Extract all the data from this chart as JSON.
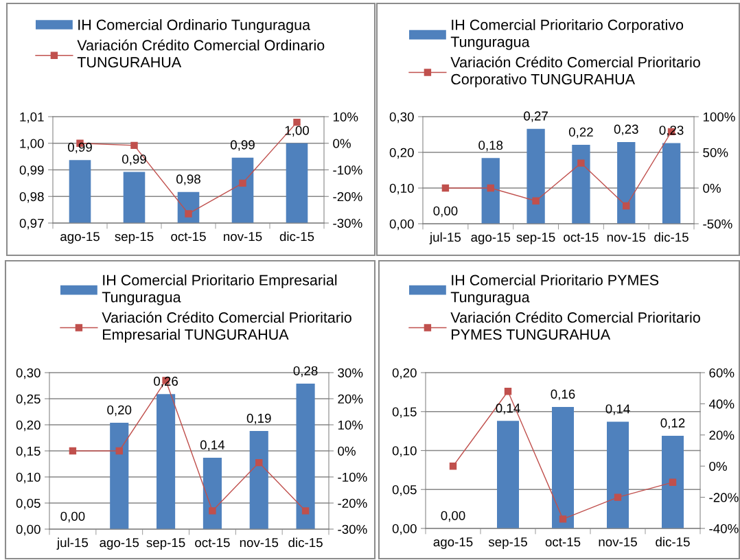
{
  "chart_data": [
    {
      "type": "bar",
      "categories": [
        "ago-15",
        "sep-15",
        "oct-15",
        "nov-15",
        "dic-15"
      ],
      "series": [
        {
          "name": "IH Comercial Ordinario Tunguragua",
          "color": "#4f81bd",
          "values": [
            0.9937,
            0.9892,
            0.9817,
            0.9946,
            1.0
          ],
          "value_labels": [
            "0,99",
            "0,99",
            "0,98",
            "0,99",
            "1,00"
          ]
        },
        {
          "name": "Variación Crédito Comercial Ordinario TUNGURAHUA",
          "type": "line",
          "axis": "y2",
          "color": "#c0504d",
          "marker": "square",
          "values": [
            0,
            -0.8,
            -26.5,
            -15,
            7.9
          ]
        }
      ],
      "ylim": [
        0.97,
        1.01
      ],
      "yticks": [
        {
          "value": 0.97,
          "label": "0,97"
        },
        {
          "value": 0.98,
          "label": "0,98"
        },
        {
          "value": 0.99,
          "label": "0,99"
        },
        {
          "value": 1.0,
          "label": "1,00"
        },
        {
          "value": 1.01,
          "label": "1,01"
        }
      ],
      "y2lim": [
        -30,
        10
      ],
      "y2ticks": [
        {
          "value": -30,
          "label": "-30%"
        },
        {
          "value": -20,
          "label": "-20%"
        },
        {
          "value": -10,
          "label": "-10%"
        },
        {
          "value": 0,
          "label": "0%"
        },
        {
          "value": 10,
          "label": "10%"
        }
      ],
      "grid": "y",
      "legend": "top"
    },
    {
      "type": "bar",
      "categories": [
        "jul-15",
        "ago-15",
        "sep-15",
        "oct-15",
        "nov-15",
        "dic-15"
      ],
      "series": [
        {
          "name": "IH Comercial Prioritario Corporativo Tunguragua",
          "color": "#4f81bd",
          "values": [
            0,
            0.184,
            0.266,
            0.221,
            0.229,
            0.226
          ],
          "value_labels": [
            "0,00",
            "0,18",
            "0,27",
            "0,22",
            "0,23",
            "0,23"
          ]
        },
        {
          "name": "Variación Crédito Comercial Prioritario Corporativo TUNGURAHUA",
          "type": "line",
          "axis": "y2",
          "color": "#c0504d",
          "marker": "square",
          "values": [
            0,
            0,
            -18,
            35,
            -25,
            79
          ]
        }
      ],
      "ylim": [
        0,
        0.3
      ],
      "yticks": [
        {
          "value": 0,
          "label": "0,00"
        },
        {
          "value": 0.1,
          "label": "0,10"
        },
        {
          "value": 0.2,
          "label": "0,20"
        },
        {
          "value": 0.3,
          "label": "0,30"
        }
      ],
      "y2lim": [
        -50,
        100
      ],
      "y2ticks": [
        {
          "value": -50,
          "label": "-50%"
        },
        {
          "value": 0,
          "label": "0%"
        },
        {
          "value": 50,
          "label": "50%"
        },
        {
          "value": 100,
          "label": "100%"
        }
      ],
      "grid": "y",
      "legend": "top"
    },
    {
      "type": "bar",
      "categories": [
        "jul-15",
        "ago-15",
        "sep-15",
        "oct-15",
        "nov-15",
        "dic-15"
      ],
      "series": [
        {
          "name": "IH Comercial Prioritario Empresarial Tunguragua",
          "color": "#4f81bd",
          "values": [
            0,
            0.204,
            0.259,
            0.137,
            0.188,
            0.279
          ],
          "value_labels": [
            "0,00",
            "0,20",
            "0,26",
            "0,14",
            "0,19",
            "0,28"
          ]
        },
        {
          "name": "Variación Crédito Comercial Prioritario Empresarial TUNGURAHUA",
          "type": "line",
          "axis": "y2",
          "color": "#c0504d",
          "marker": "square",
          "values": [
            0,
            0,
            27,
            -23,
            -4.5,
            -23
          ]
        }
      ],
      "ylim": [
        0,
        0.3
      ],
      "yticks": [
        {
          "value": 0,
          "label": "0,00"
        },
        {
          "value": 0.05,
          "label": "0,05"
        },
        {
          "value": 0.1,
          "label": "0,10"
        },
        {
          "value": 0.15,
          "label": "0,15"
        },
        {
          "value": 0.2,
          "label": "0,20"
        },
        {
          "value": 0.25,
          "label": "0,25"
        },
        {
          "value": 0.3,
          "label": "0,30"
        }
      ],
      "y2lim": [
        -30,
        30
      ],
      "y2ticks": [
        {
          "value": -30,
          "label": "-30%"
        },
        {
          "value": -20,
          "label": "-20%"
        },
        {
          "value": -10,
          "label": "-10%"
        },
        {
          "value": 0,
          "label": "0%"
        },
        {
          "value": 10,
          "label": "10%"
        },
        {
          "value": 20,
          "label": "20%"
        },
        {
          "value": 30,
          "label": "30%"
        }
      ],
      "grid": "y",
      "legend": "top"
    },
    {
      "type": "bar",
      "categories": [
        "ago-15",
        "sep-15",
        "oct-15",
        "nov-15",
        "dic-15"
      ],
      "series": [
        {
          "name": "IH Comercial Prioritario PYMES Tunguragua",
          "color": "#4f81bd",
          "values": [
            0,
            0.138,
            0.156,
            0.137,
            0.119
          ],
          "value_labels": [
            "0,00",
            "0,14",
            "0,16",
            "0,14",
            "0,12"
          ]
        },
        {
          "name": "Variación Crédito Comercial Prioritario PYMES TUNGURAHUA",
          "type": "line",
          "axis": "y2",
          "color": "#c0504d",
          "marker": "square",
          "values": [
            0,
            48,
            -34,
            -20,
            -10.4
          ]
        }
      ],
      "ylim": [
        0,
        0.2
      ],
      "yticks": [
        {
          "value": 0,
          "label": "0,00"
        },
        {
          "value": 0.05,
          "label": "0,05"
        },
        {
          "value": 0.1,
          "label": "0,10"
        },
        {
          "value": 0.15,
          "label": "0,15"
        },
        {
          "value": 0.2,
          "label": "0,20"
        }
      ],
      "y2lim": [
        -40,
        60
      ],
      "y2ticks": [
        {
          "value": -40,
          "label": "-40%"
        },
        {
          "value": -20,
          "label": "-20%"
        },
        {
          "value": 0,
          "label": "0%"
        },
        {
          "value": 20,
          "label": "20%"
        },
        {
          "value": 40,
          "label": "40%"
        },
        {
          "value": 60,
          "label": "60%"
        }
      ],
      "grid": "y",
      "legend": "top"
    }
  ]
}
